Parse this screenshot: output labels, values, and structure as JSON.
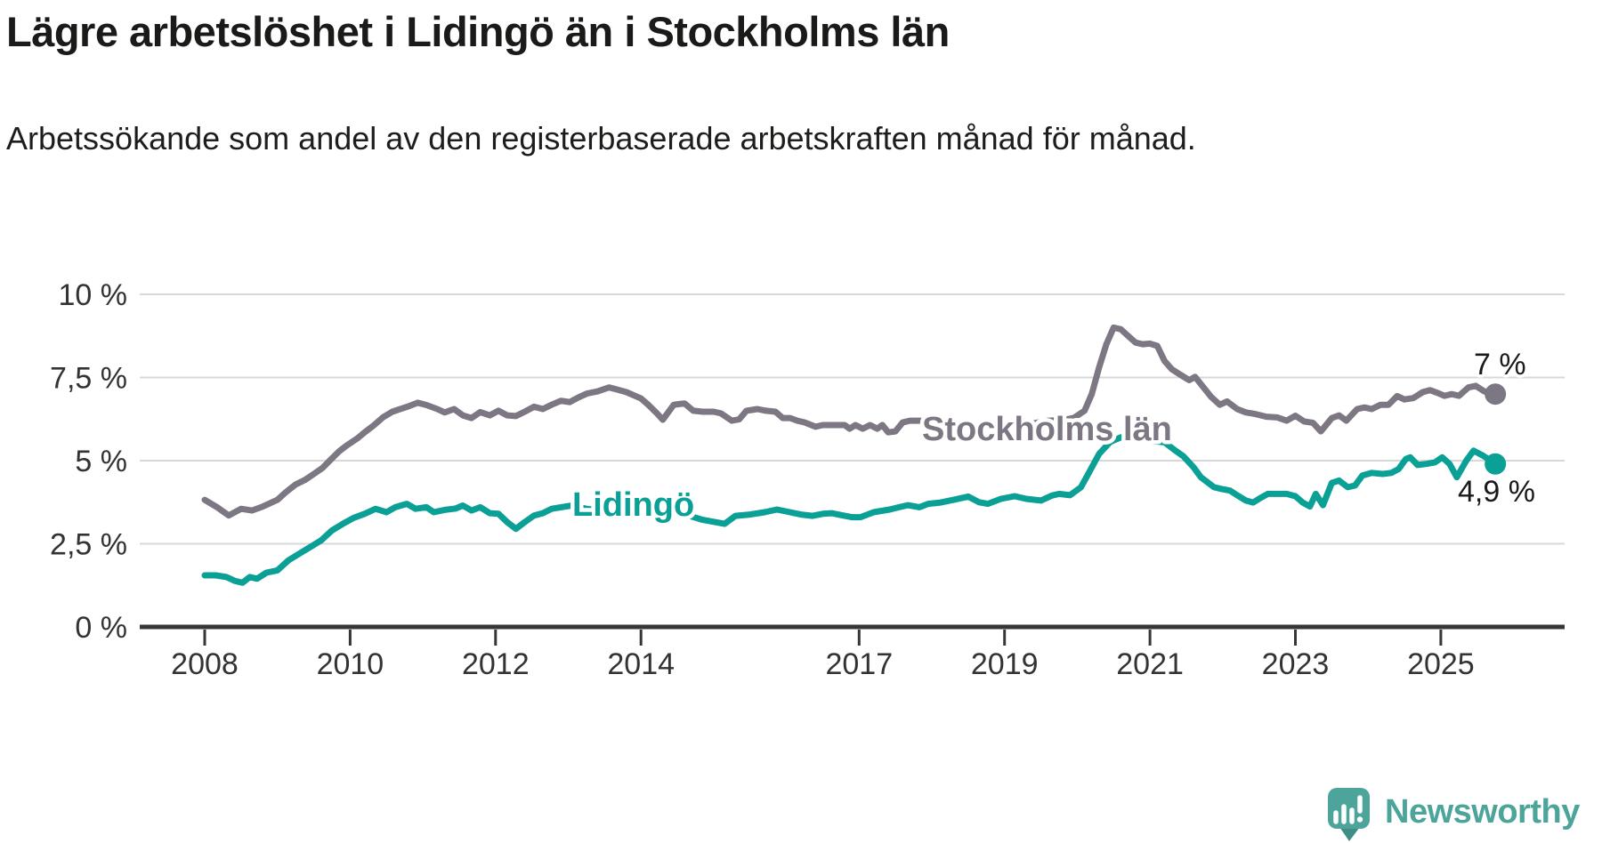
{
  "header": {
    "title": "Lägre arbetslöshet i Lidingö än i Stockholms län",
    "subtitle": "Arbetssökande som andel av den registerbaserade arbetskraften månad för månad."
  },
  "chart_data": {
    "type": "line",
    "title": "Lägre arbetslöshet i Lidingö än i Stockholms län",
    "grid": true,
    "legend_position": "inline-labels",
    "x_axis": {
      "ticks": [
        2008,
        2010,
        2012,
        2014,
        2017,
        2019,
        2021,
        2023,
        2025
      ],
      "range_years": [
        2007.1,
        2026.7
      ]
    },
    "y_axis": {
      "unit": "%",
      "values": [
        0,
        2.5,
        5,
        7.5,
        10
      ],
      "labels": [
        "0 %",
        "2,5 %",
        "5 %",
        "7,5 %",
        "10 %"
      ],
      "range": [
        0,
        10
      ]
    },
    "series": [
      {
        "name": "Stockholms län",
        "color": "#7c7782",
        "end_label": "7 %",
        "end_value": 7.0,
        "points": [
          [
            2008.0,
            3.82
          ],
          [
            2008.17,
            3.6
          ],
          [
            2008.33,
            3.35
          ],
          [
            2008.5,
            3.55
          ],
          [
            2008.65,
            3.5
          ],
          [
            2008.8,
            3.62
          ],
          [
            2009.0,
            3.82
          ],
          [
            2009.12,
            4.06
          ],
          [
            2009.25,
            4.28
          ],
          [
            2009.38,
            4.42
          ],
          [
            2009.5,
            4.6
          ],
          [
            2009.62,
            4.78
          ],
          [
            2009.72,
            5.0
          ],
          [
            2009.85,
            5.28
          ],
          [
            2009.95,
            5.45
          ],
          [
            2010.1,
            5.67
          ],
          [
            2010.2,
            5.85
          ],
          [
            2010.33,
            6.07
          ],
          [
            2010.45,
            6.3
          ],
          [
            2010.58,
            6.47
          ],
          [
            2010.7,
            6.56
          ],
          [
            2010.8,
            6.63
          ],
          [
            2010.93,
            6.74
          ],
          [
            2011.05,
            6.67
          ],
          [
            2011.2,
            6.55
          ],
          [
            2011.3,
            6.45
          ],
          [
            2011.43,
            6.55
          ],
          [
            2011.55,
            6.36
          ],
          [
            2011.67,
            6.28
          ],
          [
            2011.79,
            6.46
          ],
          [
            2011.92,
            6.36
          ],
          [
            2012.04,
            6.5
          ],
          [
            2012.16,
            6.36
          ],
          [
            2012.28,
            6.34
          ],
          [
            2012.4,
            6.47
          ],
          [
            2012.53,
            6.62
          ],
          [
            2012.65,
            6.55
          ],
          [
            2012.77,
            6.68
          ],
          [
            2012.9,
            6.8
          ],
          [
            2013.02,
            6.76
          ],
          [
            2013.14,
            6.9
          ],
          [
            2013.26,
            7.02
          ],
          [
            2013.4,
            7.08
          ],
          [
            2013.56,
            7.2
          ],
          [
            2013.67,
            7.14
          ],
          [
            2013.8,
            7.06
          ],
          [
            2014.0,
            6.87
          ],
          [
            2014.1,
            6.68
          ],
          [
            2014.22,
            6.42
          ],
          [
            2014.3,
            6.23
          ],
          [
            2014.45,
            6.68
          ],
          [
            2014.6,
            6.72
          ],
          [
            2014.72,
            6.5
          ],
          [
            2014.85,
            6.47
          ],
          [
            2015.0,
            6.47
          ],
          [
            2015.1,
            6.42
          ],
          [
            2015.25,
            6.2
          ],
          [
            2015.35,
            6.24
          ],
          [
            2015.45,
            6.5
          ],
          [
            2015.6,
            6.55
          ],
          [
            2015.72,
            6.5
          ],
          [
            2015.85,
            6.47
          ],
          [
            2015.95,
            6.28
          ],
          [
            2016.05,
            6.28
          ],
          [
            2016.15,
            6.2
          ],
          [
            2016.25,
            6.15
          ],
          [
            2016.4,
            6.02
          ],
          [
            2016.5,
            6.07
          ],
          [
            2016.6,
            6.07
          ],
          [
            2016.8,
            6.07
          ],
          [
            2016.87,
            5.96
          ],
          [
            2016.95,
            6.07
          ],
          [
            2017.05,
            5.96
          ],
          [
            2017.15,
            6.07
          ],
          [
            2017.25,
            5.96
          ],
          [
            2017.32,
            6.07
          ],
          [
            2017.4,
            5.85
          ],
          [
            2017.5,
            5.88
          ],
          [
            2017.6,
            6.15
          ],
          [
            2017.7,
            6.2
          ],
          [
            2017.85,
            6.2
          ],
          [
            2018.0,
            6.15
          ],
          [
            2018.2,
            6.05
          ],
          [
            2018.4,
            6.1
          ],
          [
            2018.6,
            6.05
          ],
          [
            2018.8,
            6.1
          ],
          [
            2019.0,
            6.05
          ],
          [
            2019.2,
            6.1
          ],
          [
            2019.4,
            6.12
          ],
          [
            2019.6,
            6.2
          ],
          [
            2019.8,
            6.22
          ],
          [
            2019.95,
            6.28
          ],
          [
            2020.1,
            6.5
          ],
          [
            2020.2,
            7.0
          ],
          [
            2020.3,
            7.8
          ],
          [
            2020.4,
            8.5
          ],
          [
            2020.5,
            9.0
          ],
          [
            2020.6,
            8.95
          ],
          [
            2020.7,
            8.75
          ],
          [
            2020.8,
            8.55
          ],
          [
            2020.9,
            8.5
          ],
          [
            2021.0,
            8.52
          ],
          [
            2021.1,
            8.45
          ],
          [
            2021.2,
            8.0
          ],
          [
            2021.3,
            7.75
          ],
          [
            2021.42,
            7.58
          ],
          [
            2021.54,
            7.42
          ],
          [
            2021.62,
            7.52
          ],
          [
            2021.72,
            7.25
          ],
          [
            2021.84,
            6.92
          ],
          [
            2021.96,
            6.68
          ],
          [
            2022.06,
            6.78
          ],
          [
            2022.2,
            6.55
          ],
          [
            2022.32,
            6.45
          ],
          [
            2022.45,
            6.4
          ],
          [
            2022.6,
            6.32
          ],
          [
            2022.75,
            6.3
          ],
          [
            2022.88,
            6.2
          ],
          [
            2023.0,
            6.35
          ],
          [
            2023.12,
            6.18
          ],
          [
            2023.24,
            6.14
          ],
          [
            2023.35,
            5.88
          ],
          [
            2023.5,
            6.28
          ],
          [
            2023.6,
            6.36
          ],
          [
            2023.7,
            6.2
          ],
          [
            2023.85,
            6.55
          ],
          [
            2023.95,
            6.6
          ],
          [
            2024.05,
            6.55
          ],
          [
            2024.17,
            6.68
          ],
          [
            2024.28,
            6.68
          ],
          [
            2024.4,
            6.94
          ],
          [
            2024.5,
            6.84
          ],
          [
            2024.62,
            6.88
          ],
          [
            2024.75,
            7.06
          ],
          [
            2024.85,
            7.12
          ],
          [
            2024.95,
            7.04
          ],
          [
            2025.05,
            6.95
          ],
          [
            2025.15,
            7.0
          ],
          [
            2025.25,
            6.95
          ],
          [
            2025.38,
            7.2
          ],
          [
            2025.48,
            7.25
          ],
          [
            2025.6,
            7.08
          ],
          [
            2025.75,
            7.0
          ]
        ]
      },
      {
        "name": "Lidingö",
        "color": "#0aa096",
        "end_label": "4,9 %",
        "end_value": 4.9,
        "points": [
          [
            2008.0,
            1.55
          ],
          [
            2008.15,
            1.55
          ],
          [
            2008.3,
            1.5
          ],
          [
            2008.42,
            1.38
          ],
          [
            2008.52,
            1.33
          ],
          [
            2008.62,
            1.5
          ],
          [
            2008.72,
            1.45
          ],
          [
            2008.85,
            1.63
          ],
          [
            2009.0,
            1.7
          ],
          [
            2009.15,
            2.0
          ],
          [
            2009.3,
            2.2
          ],
          [
            2009.45,
            2.4
          ],
          [
            2009.6,
            2.6
          ],
          [
            2009.75,
            2.9
          ],
          [
            2009.9,
            3.1
          ],
          [
            2010.05,
            3.28
          ],
          [
            2010.2,
            3.4
          ],
          [
            2010.35,
            3.55
          ],
          [
            2010.5,
            3.45
          ],
          [
            2010.62,
            3.6
          ],
          [
            2010.78,
            3.7
          ],
          [
            2010.9,
            3.55
          ],
          [
            2011.05,
            3.6
          ],
          [
            2011.15,
            3.45
          ],
          [
            2011.3,
            3.52
          ],
          [
            2011.45,
            3.56
          ],
          [
            2011.55,
            3.65
          ],
          [
            2011.67,
            3.5
          ],
          [
            2011.79,
            3.6
          ],
          [
            2011.92,
            3.42
          ],
          [
            2012.04,
            3.4
          ],
          [
            2012.16,
            3.15
          ],
          [
            2012.28,
            2.95
          ],
          [
            2012.4,
            3.15
          ],
          [
            2012.53,
            3.35
          ],
          [
            2012.65,
            3.42
          ],
          [
            2012.77,
            3.55
          ],
          [
            2012.9,
            3.6
          ],
          [
            2013.05,
            3.65
          ],
          [
            2013.25,
            3.55
          ],
          [
            2013.45,
            3.5
          ],
          [
            2013.65,
            3.45
          ],
          [
            2013.85,
            3.5
          ],
          [
            2014.05,
            3.45
          ],
          [
            2014.25,
            3.42
          ],
          [
            2014.45,
            3.45
          ],
          [
            2014.65,
            3.35
          ],
          [
            2014.85,
            3.22
          ],
          [
            2015.05,
            3.14
          ],
          [
            2015.15,
            3.1
          ],
          [
            2015.3,
            3.34
          ],
          [
            2015.5,
            3.38
          ],
          [
            2015.7,
            3.45
          ],
          [
            2015.87,
            3.53
          ],
          [
            2016.05,
            3.45
          ],
          [
            2016.2,
            3.38
          ],
          [
            2016.36,
            3.34
          ],
          [
            2016.5,
            3.4
          ],
          [
            2016.62,
            3.42
          ],
          [
            2016.78,
            3.35
          ],
          [
            2016.9,
            3.3
          ],
          [
            2017.02,
            3.3
          ],
          [
            2017.2,
            3.45
          ],
          [
            2017.42,
            3.53
          ],
          [
            2017.55,
            3.6
          ],
          [
            2017.67,
            3.66
          ],
          [
            2017.83,
            3.6
          ],
          [
            2017.95,
            3.7
          ],
          [
            2018.12,
            3.74
          ],
          [
            2018.3,
            3.82
          ],
          [
            2018.5,
            3.92
          ],
          [
            2018.65,
            3.75
          ],
          [
            2018.77,
            3.7
          ],
          [
            2018.95,
            3.85
          ],
          [
            2019.14,
            3.93
          ],
          [
            2019.3,
            3.85
          ],
          [
            2019.5,
            3.8
          ],
          [
            2019.65,
            3.95
          ],
          [
            2019.75,
            4.0
          ],
          [
            2019.9,
            3.96
          ],
          [
            2020.05,
            4.2
          ],
          [
            2020.15,
            4.6
          ],
          [
            2020.3,
            5.2
          ],
          [
            2020.45,
            5.56
          ],
          [
            2020.6,
            5.7
          ],
          [
            2020.8,
            5.72
          ],
          [
            2021.0,
            5.6
          ],
          [
            2021.2,
            5.55
          ],
          [
            2021.35,
            5.3
          ],
          [
            2021.46,
            5.13
          ],
          [
            2021.6,
            4.8
          ],
          [
            2021.7,
            4.5
          ],
          [
            2021.78,
            4.37
          ],
          [
            2021.88,
            4.2
          ],
          [
            2021.98,
            4.15
          ],
          [
            2022.1,
            4.1
          ],
          [
            2022.2,
            3.96
          ],
          [
            2022.32,
            3.8
          ],
          [
            2022.42,
            3.74
          ],
          [
            2022.52,
            3.88
          ],
          [
            2022.62,
            4.0
          ],
          [
            2022.75,
            4.0
          ],
          [
            2022.88,
            4.0
          ],
          [
            2023.0,
            3.93
          ],
          [
            2023.1,
            3.74
          ],
          [
            2023.2,
            3.62
          ],
          [
            2023.28,
            4.0
          ],
          [
            2023.38,
            3.66
          ],
          [
            2023.5,
            4.33
          ],
          [
            2023.6,
            4.4
          ],
          [
            2023.72,
            4.2
          ],
          [
            2023.82,
            4.25
          ],
          [
            2023.92,
            4.55
          ],
          [
            2024.05,
            4.63
          ],
          [
            2024.2,
            4.6
          ],
          [
            2024.32,
            4.63
          ],
          [
            2024.42,
            4.75
          ],
          [
            2024.52,
            5.05
          ],
          [
            2024.58,
            5.1
          ],
          [
            2024.68,
            4.87
          ],
          [
            2024.8,
            4.9
          ],
          [
            2024.92,
            4.95
          ],
          [
            2025.02,
            5.1
          ],
          [
            2025.12,
            4.9
          ],
          [
            2025.22,
            4.5
          ],
          [
            2025.35,
            5.0
          ],
          [
            2025.45,
            5.3
          ],
          [
            2025.58,
            5.15
          ],
          [
            2025.75,
            4.9
          ]
        ]
      }
    ]
  },
  "branding": {
    "logo_text": "Newsworthy",
    "brand_color": "#4ca49b"
  }
}
